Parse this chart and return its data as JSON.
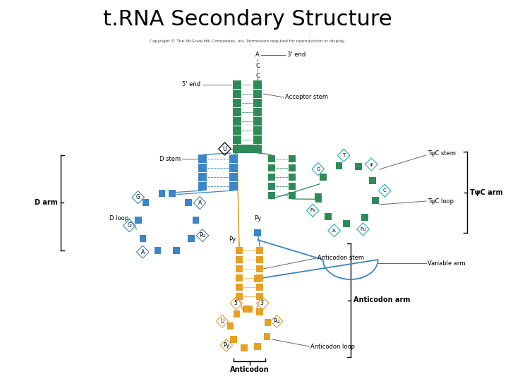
{
  "title": "t.RNA Secondary Structure",
  "title_fontsize": 22,
  "copyright_text": "Copyright © The McGraw-Hill Companies, Inc. Permission required for reproduction or display.",
  "bg_color": "#ffffff",
  "colors": {
    "green": "#2e8b57",
    "teal": "#20b2aa",
    "blue": "#3a86c8",
    "orange": "#e8a020",
    "black": "#000000",
    "gray": "#666666"
  },
  "labels": {
    "three_end": "3' end",
    "five_end": "5' end",
    "acceptor_stem": "Acceptor stem",
    "d_arm": "D arm",
    "d_stem": "D stem",
    "d_loop": "D loop",
    "tc_stem": "TψC stem",
    "tc_arm": "TψC arm",
    "tc_loop": "TψC loop",
    "variable_arm": "Variable arm",
    "anticodon_stem": "Anticodon stem",
    "anticodon_arm": "Anticodon arm",
    "anticodon_loop": "Anticodon loop",
    "anticodon": "Anticodon"
  }
}
